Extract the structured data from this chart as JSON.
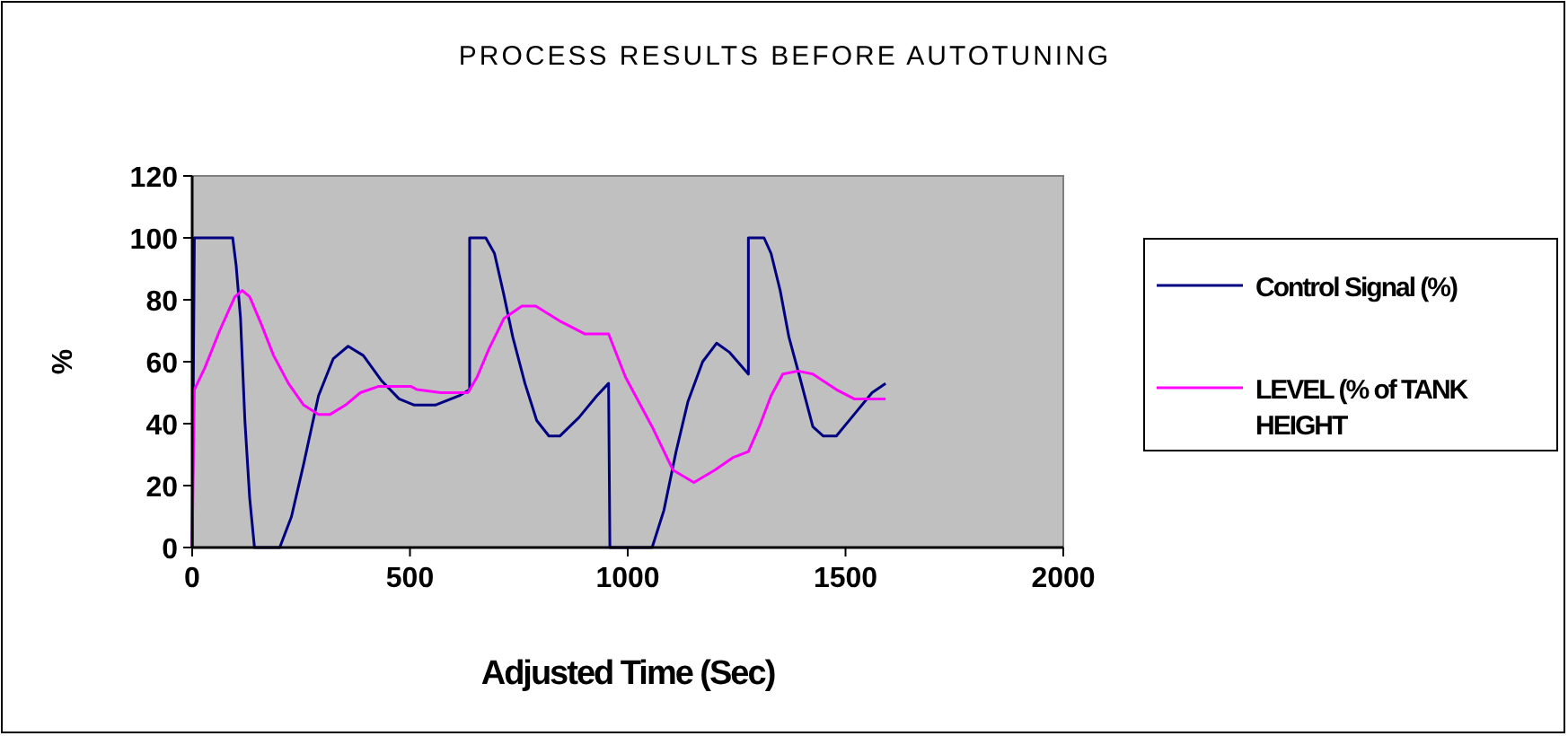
{
  "chart_data": {
    "type": "line",
    "title": "PROCESS RESULTS BEFORE AUTOTUNING",
    "xlabel": "Adjusted Time (Sec)",
    "ylabel": "%",
    "xlim": [
      0,
      2000
    ],
    "xticks": [
      0,
      500,
      1000,
      1500,
      2000
    ],
    "ylim": [
      0,
      120
    ],
    "yticks": [
      0,
      20,
      40,
      60,
      80,
      100,
      120
    ],
    "grid": false,
    "legend": "right",
    "marker": "none",
    "line_style": "solid",
    "series": [
      {
        "name": "Control Signal (%)",
        "color": "#000080",
        "x": [
          0,
          5,
          93,
          101,
          111,
          121,
          132,
          143,
          201,
          228,
          256,
          290,
          324,
          358,
          393,
          434,
          475,
          510,
          558,
          613,
          637,
          637,
          674,
          694,
          715,
          736,
          764,
          791,
          819,
          844,
          888,
          929,
          956,
          959,
          1056,
          1083,
          1111,
          1138,
          1172,
          1204,
          1234,
          1277,
          1277,
          1313,
          1329,
          1350,
          1370,
          1395,
          1425,
          1449,
          1479,
          1520,
          1561,
          1592
        ],
        "values": [
          0,
          100,
          100,
          91,
          74,
          41,
          16,
          0,
          0,
          10,
          27,
          49,
          61,
          65,
          62,
          54,
          48,
          46,
          46,
          49,
          51,
          100,
          100,
          95,
          82,
          68,
          53,
          41,
          36,
          36,
          42,
          49,
          53,
          0,
          0,
          12,
          31,
          47,
          60,
          66,
          63,
          56,
          100,
          100,
          95,
          83,
          68,
          55,
          39,
          36,
          36,
          43,
          50,
          53
        ]
      },
      {
        "name": "LEVEL (% of TANK HEIGHT",
        "color": "#ff00ff",
        "x": [
          0,
          5,
          29,
          63,
          98,
          115,
          132,
          159,
          187,
          221,
          256,
          290,
          317,
          352,
          386,
          427,
          503,
          516,
          571,
          633,
          654,
          681,
          716,
          757,
          789,
          846,
          901,
          956,
          995,
          1056,
          1104,
          1152,
          1200,
          1241,
          1277,
          1302,
          1329,
          1356,
          1391,
          1425,
          1479,
          1520,
          1592
        ],
        "values": [
          0,
          51,
          58,
          70,
          81,
          83,
          81,
          72,
          62,
          53,
          46,
          43,
          43,
          46,
          50,
          52,
          52,
          51,
          50,
          50,
          55,
          64,
          74,
          78,
          78,
          73,
          69,
          69,
          55,
          39,
          25,
          21,
          25,
          29,
          31,
          39,
          49,
          56,
          57,
          56,
          51,
          48,
          48
        ]
      }
    ]
  }
}
